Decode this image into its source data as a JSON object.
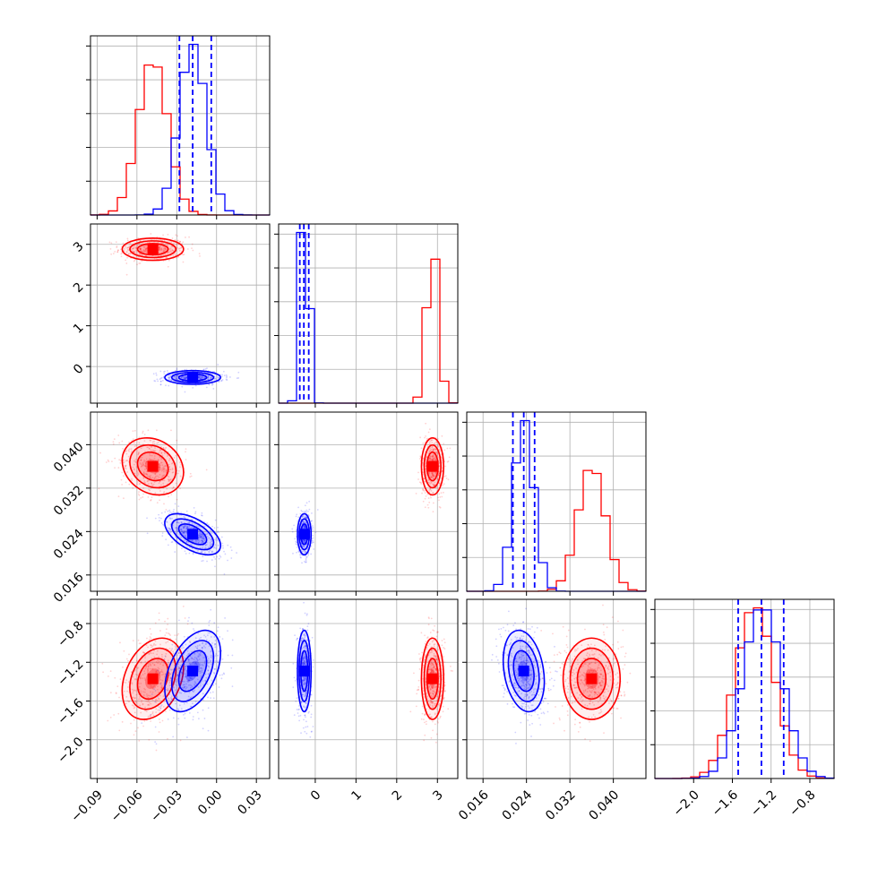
{
  "chart_data": {
    "type": "corner",
    "title": "",
    "grid": true,
    "series": [
      {
        "color": "#ff0000"
      },
      {
        "color": "#0000ff"
      }
    ],
    "quantile_series_index": 1,
    "parameters": [
      {
        "range": [
          -0.095,
          0.04
        ],
        "ticks": [
          -0.09,
          -0.06,
          -0.03,
          0.0,
          0.03
        ],
        "tick_labels": [
          "−0.09",
          "−0.06",
          "−0.03",
          "0.00",
          "0.03"
        ],
        "means": [
          -0.048,
          -0.018
        ],
        "sigmas": [
          0.011,
          0.01
        ],
        "quantiles": [
          -0.028,
          -0.018,
          -0.004
        ]
      },
      {
        "range": [
          -0.9,
          3.5
        ],
        "ticks": [
          0,
          1,
          2,
          3
        ],
        "tick_labels": [
          "0",
          "1",
          "2",
          "3"
        ],
        "means": [
          2.88,
          -0.27
        ],
        "sigmas": [
          0.13,
          0.08
        ],
        "quantiles": [
          -0.38,
          -0.28,
          -0.16
        ]
      },
      {
        "range": [
          0.013,
          0.046
        ],
        "ticks": [
          0.016,
          0.024,
          0.032,
          0.04
        ],
        "tick_labels": [
          "0.016",
          "0.024",
          "0.032",
          "0.040"
        ],
        "means": [
          0.036,
          0.0235
        ],
        "sigmas": [
          0.0025,
          0.0018
        ],
        "quantiles": [
          0.0215,
          0.0235,
          0.0255
        ]
      },
      {
        "range": [
          -2.4,
          -0.55
        ],
        "ticks": [
          -2.0,
          -1.6,
          -1.2,
          -0.8
        ],
        "tick_labels": [
          "−2.0",
          "−1.6",
          "−1.2",
          "−0.8"
        ],
        "means": [
          -1.37,
          -1.29
        ],
        "sigmas": [
          0.2,
          0.2
        ],
        "quantiles": [
          -1.54,
          -1.3,
          -1.07
        ]
      }
    ],
    "correlations": [
      {
        "pair": [
          1,
          0
        ],
        "rho": [
          0.0,
          0.0
        ]
      },
      {
        "pair": [
          2,
          0
        ],
        "rho": [
          -0.2,
          -0.55
        ]
      },
      {
        "pair": [
          2,
          1
        ],
        "rho": [
          0.0,
          0.0
        ]
      },
      {
        "pair": [
          3,
          0
        ],
        "rho": [
          0.3,
          0.45
        ]
      },
      {
        "pair": [
          3,
          1
        ],
        "rho": [
          0.0,
          0.0
        ]
      },
      {
        "pair": [
          3,
          2
        ],
        "rho": [
          0.0,
          -0.25
        ]
      }
    ]
  }
}
